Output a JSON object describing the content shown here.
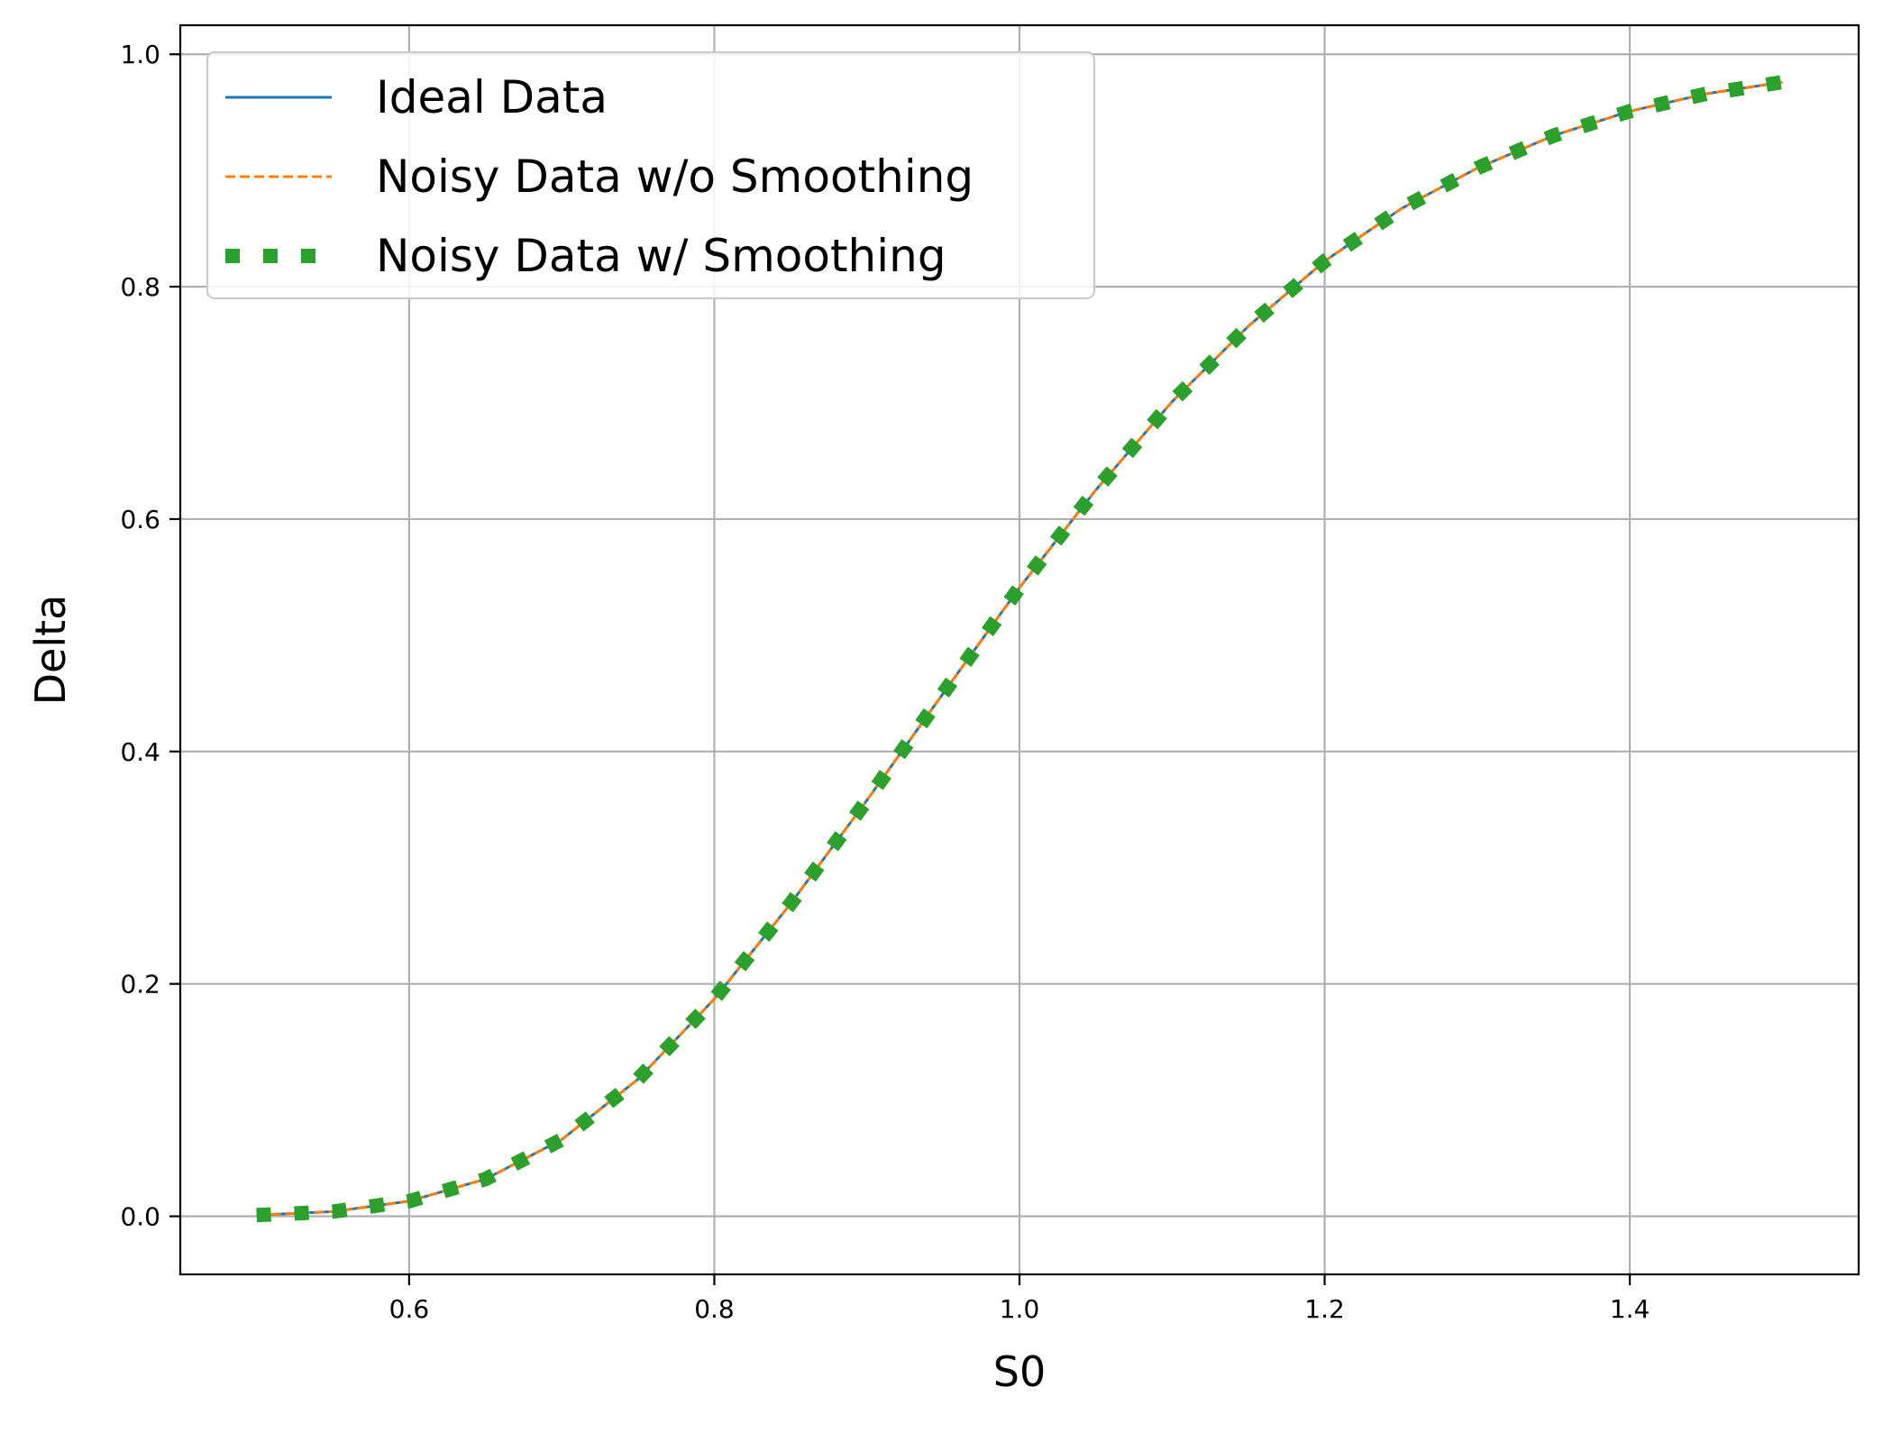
{
  "chart_data": {
    "type": "line",
    "title": "",
    "xlabel": "S0",
    "ylabel": "Delta",
    "xlim": [
      0.45,
      1.55
    ],
    "ylim": [
      -0.05,
      1.025
    ],
    "xticks": [
      0.6,
      0.8,
      1.0,
      1.2,
      1.4
    ],
    "xtick_labels": [
      "0.6",
      "0.8",
      "1.0",
      "1.2",
      "1.4"
    ],
    "yticks": [
      0.0,
      0.2,
      0.4,
      0.6,
      0.8,
      1.0
    ],
    "ytick_labels": [
      "0.0",
      "0.2",
      "0.4",
      "0.6",
      "0.8",
      "1.0"
    ],
    "grid": true,
    "legend": "upper left",
    "x": [
      0.5,
      0.55,
      0.6,
      0.65,
      0.7,
      0.75,
      0.8,
      0.85,
      0.9,
      0.95,
      1.0,
      1.05,
      1.1,
      1.15,
      1.2,
      1.25,
      1.3,
      1.35,
      1.4,
      1.45,
      1.5
    ],
    "series": [
      {
        "name": "Ideal Data",
        "color": "#1f77b4",
        "style": "solid",
        "values": [
          0.001,
          0.004,
          0.013,
          0.032,
          0.066,
          0.118,
          0.187,
          0.269,
          0.358,
          0.45,
          0.541,
          0.625,
          0.701,
          0.766,
          0.822,
          0.867,
          0.902,
          0.93,
          0.951,
          0.966,
          0.976
        ]
      },
      {
        "name": "Noisy Data w/o Smoothing",
        "color": "#ff7f0e",
        "style": "dashed",
        "values": [
          0.001,
          0.004,
          0.013,
          0.032,
          0.066,
          0.118,
          0.187,
          0.269,
          0.358,
          0.45,
          0.541,
          0.625,
          0.701,
          0.766,
          0.822,
          0.867,
          0.902,
          0.93,
          0.951,
          0.966,
          0.976
        ]
      },
      {
        "name": "Noisy Data w/ Smoothing",
        "color": "#2ca02c",
        "style": "square-dotted",
        "values": [
          0.001,
          0.004,
          0.013,
          0.032,
          0.066,
          0.118,
          0.187,
          0.269,
          0.358,
          0.45,
          0.541,
          0.625,
          0.701,
          0.766,
          0.822,
          0.867,
          0.902,
          0.93,
          0.951,
          0.966,
          0.976
        ]
      }
    ]
  }
}
